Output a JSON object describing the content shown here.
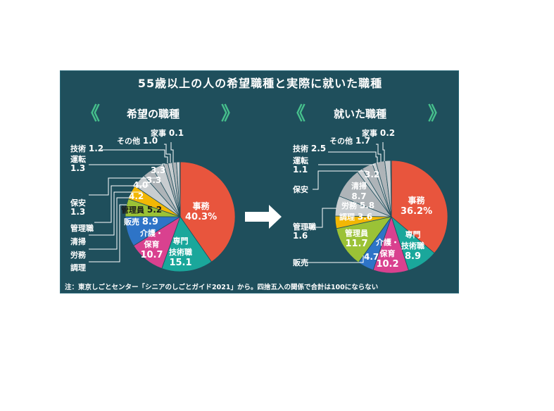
{
  "title": "55歳以上の人の希望職種と実際に就いた職種",
  "note": "注：東京しごとセンター「シニアのしごとガイド2021」から。四捨五入の関係で合計は100にならない",
  "chevron_left": "《",
  "chevron_right": "》",
  "colors": {
    "background": "#1f4f5c",
    "office": "#e8553d",
    "technical": "#1aa79b",
    "care": "#d9418f",
    "sales": "#2e74c7",
    "manager": "#9bc236",
    "cooking": "#f2b705",
    "grey_light": "#c8cdd0",
    "grey_mid": "#aeb4b8",
    "grey_dark": "#8e969b",
    "accent": "#46c08c"
  },
  "chart_data": [
    {
      "type": "pie",
      "title": "希望の職種",
      "slices": [
        {
          "label": "事務",
          "value": 40.3,
          "display": "40.3%",
          "color": "#e8553d"
        },
        {
          "label": "専門技術職",
          "value": 15.1,
          "display": "15.1",
          "color": "#1aa79b"
        },
        {
          "label": "介護・保育",
          "value": 10.7,
          "display": "10.7",
          "color": "#d9418f"
        },
        {
          "label": "販売",
          "value": 8.9,
          "display": "8.9",
          "color": "#2e74c7"
        },
        {
          "label": "管理員",
          "value": 5.2,
          "display": "5.2",
          "color": "#9bc236"
        },
        {
          "label": "調理",
          "value": 4.2,
          "display": "4.2",
          "color": "#f2b705"
        },
        {
          "label": "労務",
          "value": 4.0,
          "display": "4.0",
          "color": "#c8cdd0"
        },
        {
          "label": "清掃",
          "value": 3.3,
          "display": "3.3",
          "color": "#aeb4b8"
        },
        {
          "label": "管理職",
          "value": 3.3,
          "display": "3.3",
          "color": "#c8cdd0"
        },
        {
          "label": "保安",
          "value": 1.3,
          "display": "1.3",
          "color": "#aeb4b8"
        },
        {
          "label": "運転",
          "value": 1.3,
          "display": "1.3",
          "color": "#c8cdd0"
        },
        {
          "label": "技術",
          "value": 1.2,
          "display": "1.2",
          "color": "#aeb4b8"
        },
        {
          "label": "その他",
          "value": 1.0,
          "display": "1.0",
          "color": "#c8cdd0"
        },
        {
          "label": "家事",
          "value": 0.1,
          "display": "0.1",
          "color": "#8e969b"
        }
      ]
    },
    {
      "type": "pie",
      "title": "就いた職種",
      "slices": [
        {
          "label": "事務",
          "value": 36.2,
          "display": "36.2%",
          "color": "#e8553d"
        },
        {
          "label": "専門技術職",
          "value": 8.9,
          "display": "8.9",
          "color": "#1aa79b"
        },
        {
          "label": "介護・保育",
          "value": 10.2,
          "display": "10.2",
          "color": "#d9418f"
        },
        {
          "label": "販売",
          "value": 4.7,
          "display": "4.7",
          "color": "#2e74c7"
        },
        {
          "label": "管理員",
          "value": 11.7,
          "display": "11.7",
          "color": "#9bc236"
        },
        {
          "label": "調理",
          "value": 3.6,
          "display": "3.6",
          "color": "#f2b705"
        },
        {
          "label": "労務",
          "value": 5.8,
          "display": "5.8",
          "color": "#c8cdd0"
        },
        {
          "label": "清掃",
          "value": 8.7,
          "display": "8.7",
          "color": "#aeb4b8"
        },
        {
          "label": "管理職",
          "value": 1.6,
          "display": "1.6",
          "color": "#c8cdd0"
        },
        {
          "label": "保安",
          "value": 3.2,
          "display": "3.2",
          "color": "#aeb4b8"
        },
        {
          "label": "運転",
          "value": 1.1,
          "display": "1.1",
          "color": "#c8cdd0"
        },
        {
          "label": "技術",
          "value": 2.5,
          "display": "2.5",
          "color": "#aeb4b8"
        },
        {
          "label": "その他",
          "value": 1.7,
          "display": "1.7",
          "color": "#c8cdd0"
        },
        {
          "label": "家事",
          "value": 0.2,
          "display": "0.2",
          "color": "#8e969b"
        }
      ]
    }
  ]
}
